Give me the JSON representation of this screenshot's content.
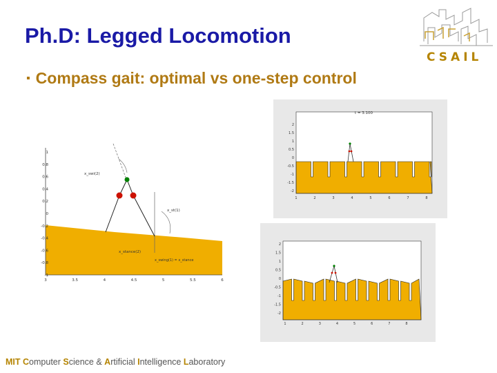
{
  "slide": {
    "title": "Ph.D: Legged Locomotion",
    "bullet": "Compass gait: optimal vs one-step control"
  },
  "logo": {
    "text": "CSAIL",
    "color": "#b58400"
  },
  "footer": [
    {
      "initial": "MIT",
      "rest": ""
    },
    {
      "initial": "C",
      "rest": "omputer"
    },
    {
      "initial": "S",
      "rest": "cience &"
    },
    {
      "initial": "A",
      "rest": "rtificial"
    },
    {
      "initial": "I",
      "rest": "ntelligence"
    },
    {
      "initial": "L",
      "rest": "aboratory"
    }
  ],
  "diagram_main": {
    "labels": {
      "x_swing": "x_swi(2)",
      "x_st": "x_st(1)",
      "x_stance2": "x_stance(2)",
      "x_relation": "x_swing(1) = x_stance"
    },
    "x_ticks": [
      "3",
      "3.5",
      "4",
      "4.5",
      "5",
      "5.5",
      "6"
    ],
    "y_ticks": [
      "1",
      "0.8",
      "0.6",
      "0.4",
      "0.2",
      "0",
      "-0.2",
      "-0.4",
      "-0.6",
      "-0.8",
      "-1"
    ],
    "colors": {
      "terrain": "#f0ae00",
      "hip": "#008000",
      "knee": "#cc1100"
    }
  },
  "plot_top": {
    "title": "t = 3.100",
    "x_ticks": [
      "1",
      "2",
      "3",
      "4",
      "5",
      "6",
      "7",
      "8"
    ],
    "y_ticks": [
      "2",
      "1.5",
      "1",
      "0.5",
      "0",
      "-0.5",
      "-1",
      "-1.5",
      "-2"
    ]
  },
  "plot_bottom": {
    "x_ticks": [
      "1",
      "2",
      "3",
      "4",
      "5",
      "6",
      "7",
      "8"
    ],
    "y_ticks": [
      "2",
      "1.5",
      "1",
      "0.5",
      "0",
      "-0.5",
      "-1",
      "-1.5",
      "-2"
    ]
  }
}
